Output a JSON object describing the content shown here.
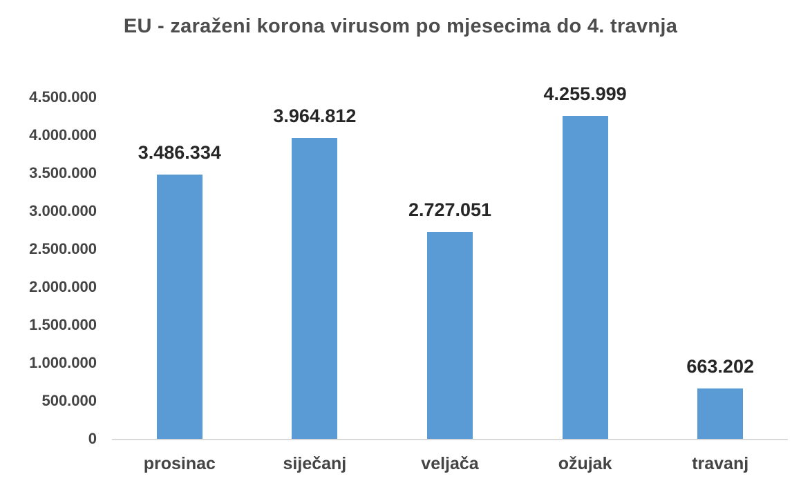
{
  "chart_data": {
    "type": "bar",
    "title": "EU - zaraženi korona virusom po mjesecima do 4. travnja",
    "categories": [
      "prosinac",
      "siječanj",
      "veljača",
      "ožujak",
      "travanj"
    ],
    "values": [
      3486334,
      3964812,
      2727051,
      4255999,
      663202
    ],
    "data_labels": [
      "3.486.334",
      "3.964.812",
      "2.727.051",
      "4.255.999",
      "663.202"
    ],
    "y_ticks": [
      "4.500.000",
      "4.000.000",
      "3.500.000",
      "3.000.000",
      "2.500.000",
      "2.000.000",
      "1.500.000",
      "1.000.000",
      "500.000",
      "0"
    ],
    "y_tick_values": [
      4500000,
      4000000,
      3500000,
      3000000,
      2500000,
      2000000,
      1500000,
      1000000,
      500000,
      0
    ],
    "ylim": [
      0,
      4500000
    ],
    "xlabel": "",
    "ylabel": "",
    "grid": false,
    "legend": false,
    "colors": {
      "bar_fill": "#5B9BD5",
      "axis_line": "#D9D9D9",
      "data_label": "#262626",
      "tick_label": "#444444",
      "title": "#4D4D4D"
    }
  }
}
